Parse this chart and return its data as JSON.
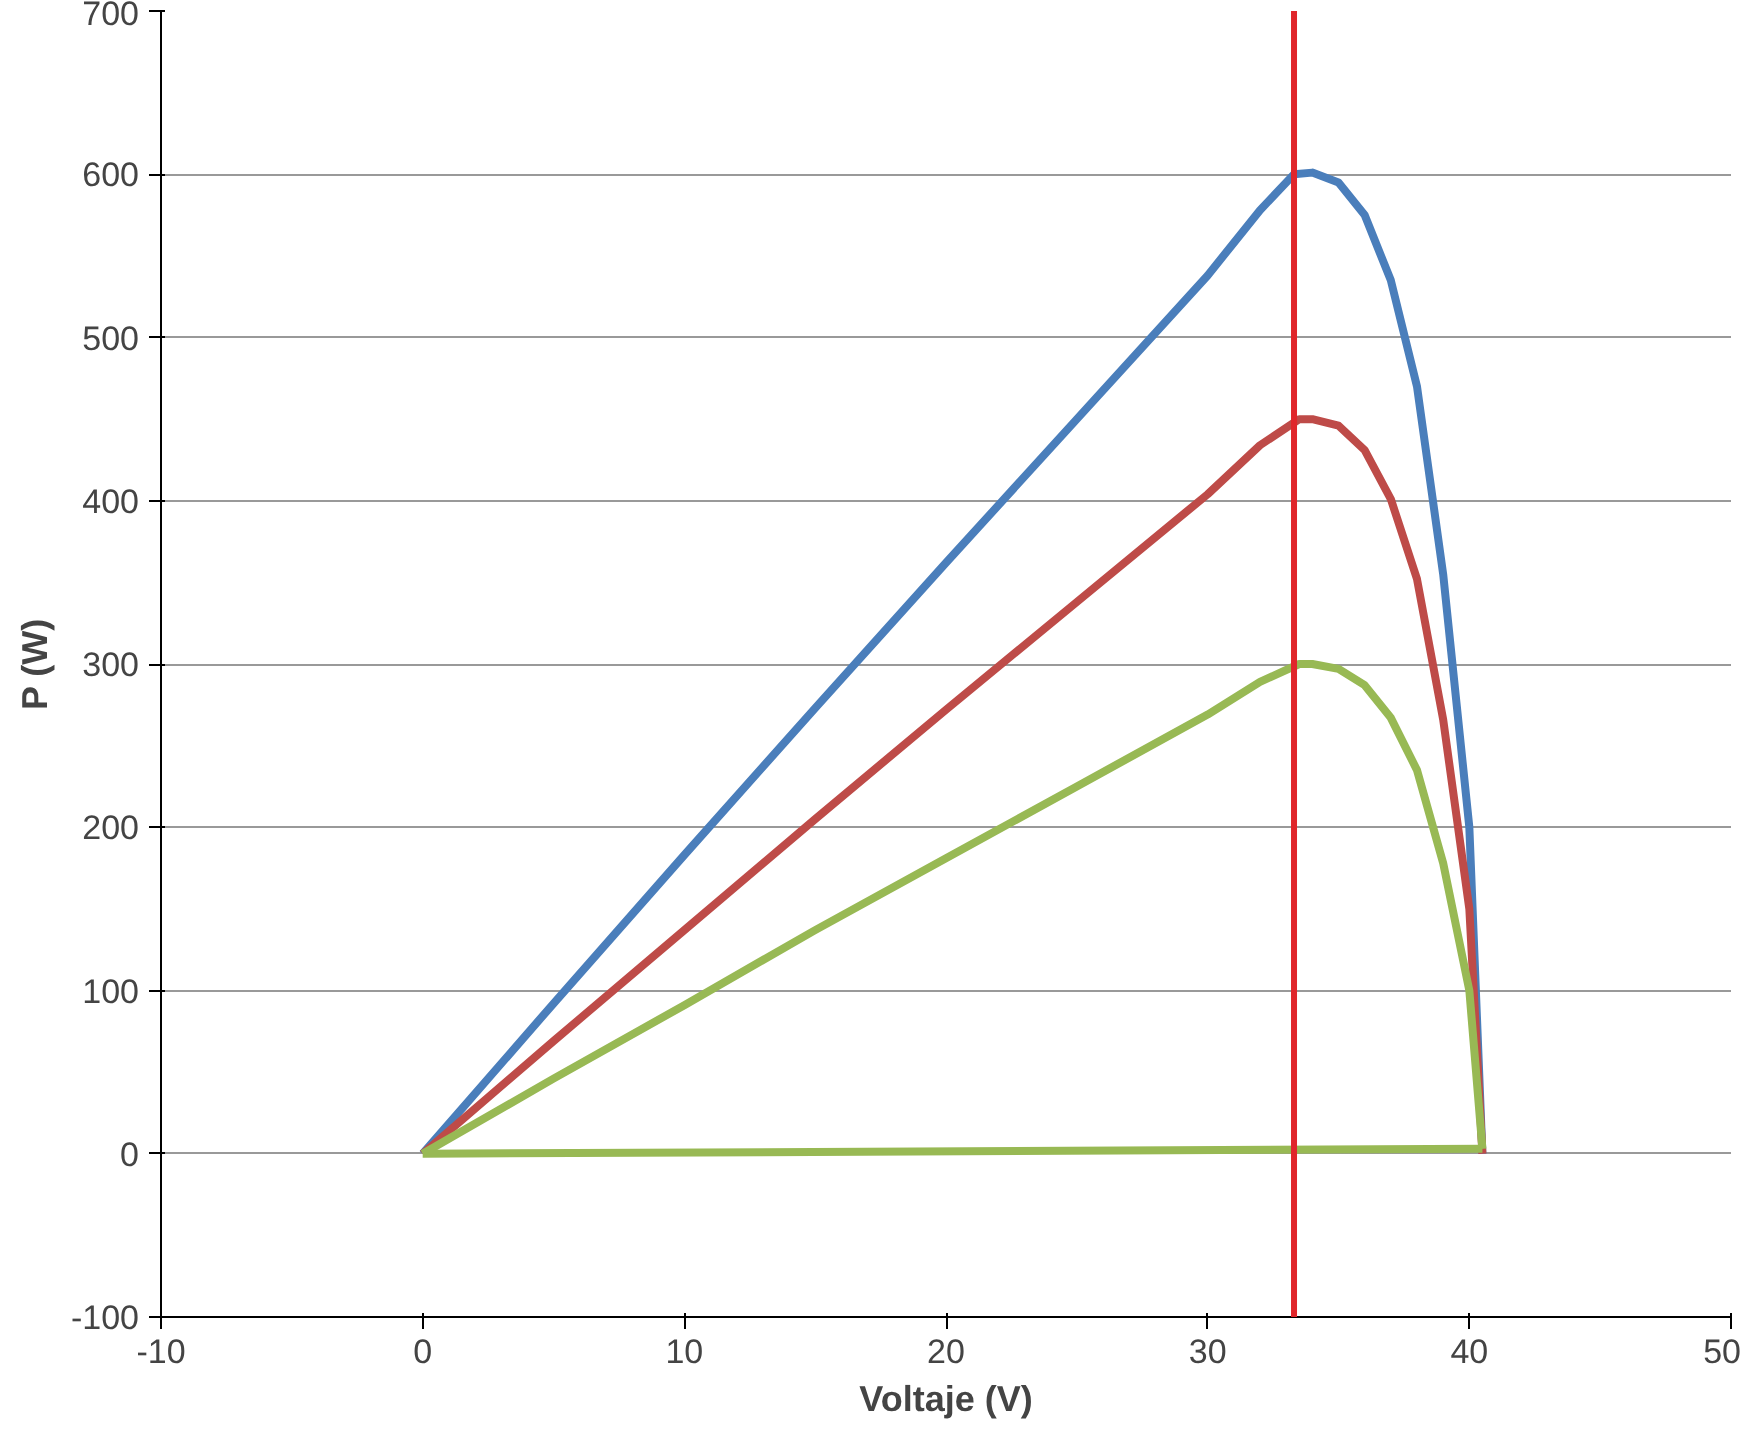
{
  "chart_data": {
    "type": "line",
    "xlabel": "Voltaje (V)",
    "ylabel": "P (W)",
    "xlim": [
      -10,
      50
    ],
    "xticks": [
      -10,
      0,
      10,
      20,
      30,
      40,
      50
    ],
    "ylim": [
      -100,
      700
    ],
    "yticks": [
      -100,
      0,
      100,
      200,
      300,
      400,
      500,
      600,
      700
    ],
    "grid": "y",
    "marker": "none",
    "line_style": "solid",
    "series": [
      {
        "color": "#4a7ebb",
        "x": [
          0,
          5,
          10,
          15,
          20,
          25,
          30,
          32,
          33.3,
          34,
          35,
          36,
          37,
          38,
          39,
          40,
          40.5
        ],
        "values": [
          0,
          92,
          183,
          273,
          362,
          450,
          538,
          578,
          600,
          601,
          595,
          575,
          535,
          470,
          355,
          200,
          0
        ]
      },
      {
        "color": "#be4b48",
        "x": [
          0,
          5,
          10,
          15,
          20,
          25,
          30,
          32,
          33.5,
          34,
          35,
          36,
          37,
          38,
          39,
          40,
          40.5
        ],
        "values": [
          0,
          69,
          137,
          205,
          272,
          338,
          404,
          434,
          450,
          450,
          446,
          431,
          401,
          352,
          266,
          150,
          0
        ]
      },
      {
        "color": "#98b954",
        "x": [
          0,
          5,
          10,
          15,
          20,
          25,
          30,
          32,
          33.5,
          34,
          35,
          36,
          37,
          38,
          39,
          40,
          40.5
        ],
        "values": [
          0,
          46,
          91,
          137,
          181,
          225,
          269,
          289,
          300,
          300,
          297,
          287,
          267,
          235,
          178,
          100,
          3
        ]
      },
      {
        "color": "#98b954",
        "x": [
          40.5,
          0
        ],
        "values": [
          3,
          0
        ]
      }
    ],
    "ref_lines": [
      {
        "axis": "x",
        "value": 33.3,
        "color": "#e0262b"
      }
    ]
  }
}
